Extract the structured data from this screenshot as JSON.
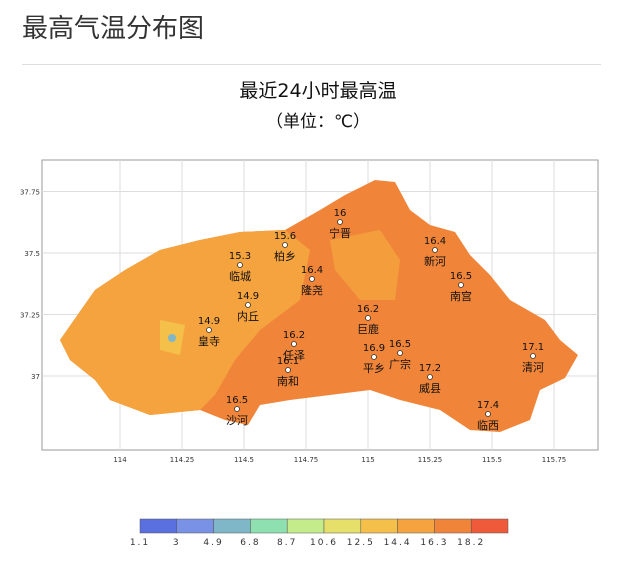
{
  "header": {
    "title": "最高气温分布图"
  },
  "map": {
    "title": "最近24小时最高温",
    "subtitle": "（单位：℃）",
    "xticks": [
      114,
      114.25,
      114.5,
      114.75,
      115,
      115.25,
      115.5,
      115.75
    ],
    "yticks": [
      37,
      37.25,
      37.5,
      37.75
    ],
    "stations": [
      {
        "name": "宁晋",
        "value": 16
      },
      {
        "name": "柏乡",
        "value": 15.6
      },
      {
        "name": "临城",
        "value": 15.3
      },
      {
        "name": "隆尧",
        "value": 16.4
      },
      {
        "name": "新河",
        "value": 16.4
      },
      {
        "name": "南宫",
        "value": 16.5
      },
      {
        "name": "内丘",
        "value": 14.9
      },
      {
        "name": "皇寺",
        "value": 14.9
      },
      {
        "name": "巨鹿",
        "value": 16.2
      },
      {
        "name": "任泽",
        "value": 16.2
      },
      {
        "name": "南和",
        "value": 16.1
      },
      {
        "name": "平乡",
        "value": 16.9
      },
      {
        "name": "广宗",
        "value": 16.5
      },
      {
        "name": "威县",
        "value": 17.2
      },
      {
        "name": "清河",
        "value": 17.1
      },
      {
        "name": "沙河",
        "value": 16.5
      },
      {
        "name": "临西",
        "value": 17.4
      }
    ]
  },
  "legend": {
    "ticks": [
      1.1,
      3,
      4.9,
      6.8,
      8.7,
      10.6,
      12.5,
      14.4,
      16.3,
      18.2
    ],
    "colors": [
      "#5a6fe0",
      "#7a92e6",
      "#7fb6c8",
      "#8fe0b0",
      "#c4ec8a",
      "#e6e06a",
      "#f5c04a",
      "#f5a33e",
      "#f0853a",
      "#ee5a3a"
    ]
  }
}
